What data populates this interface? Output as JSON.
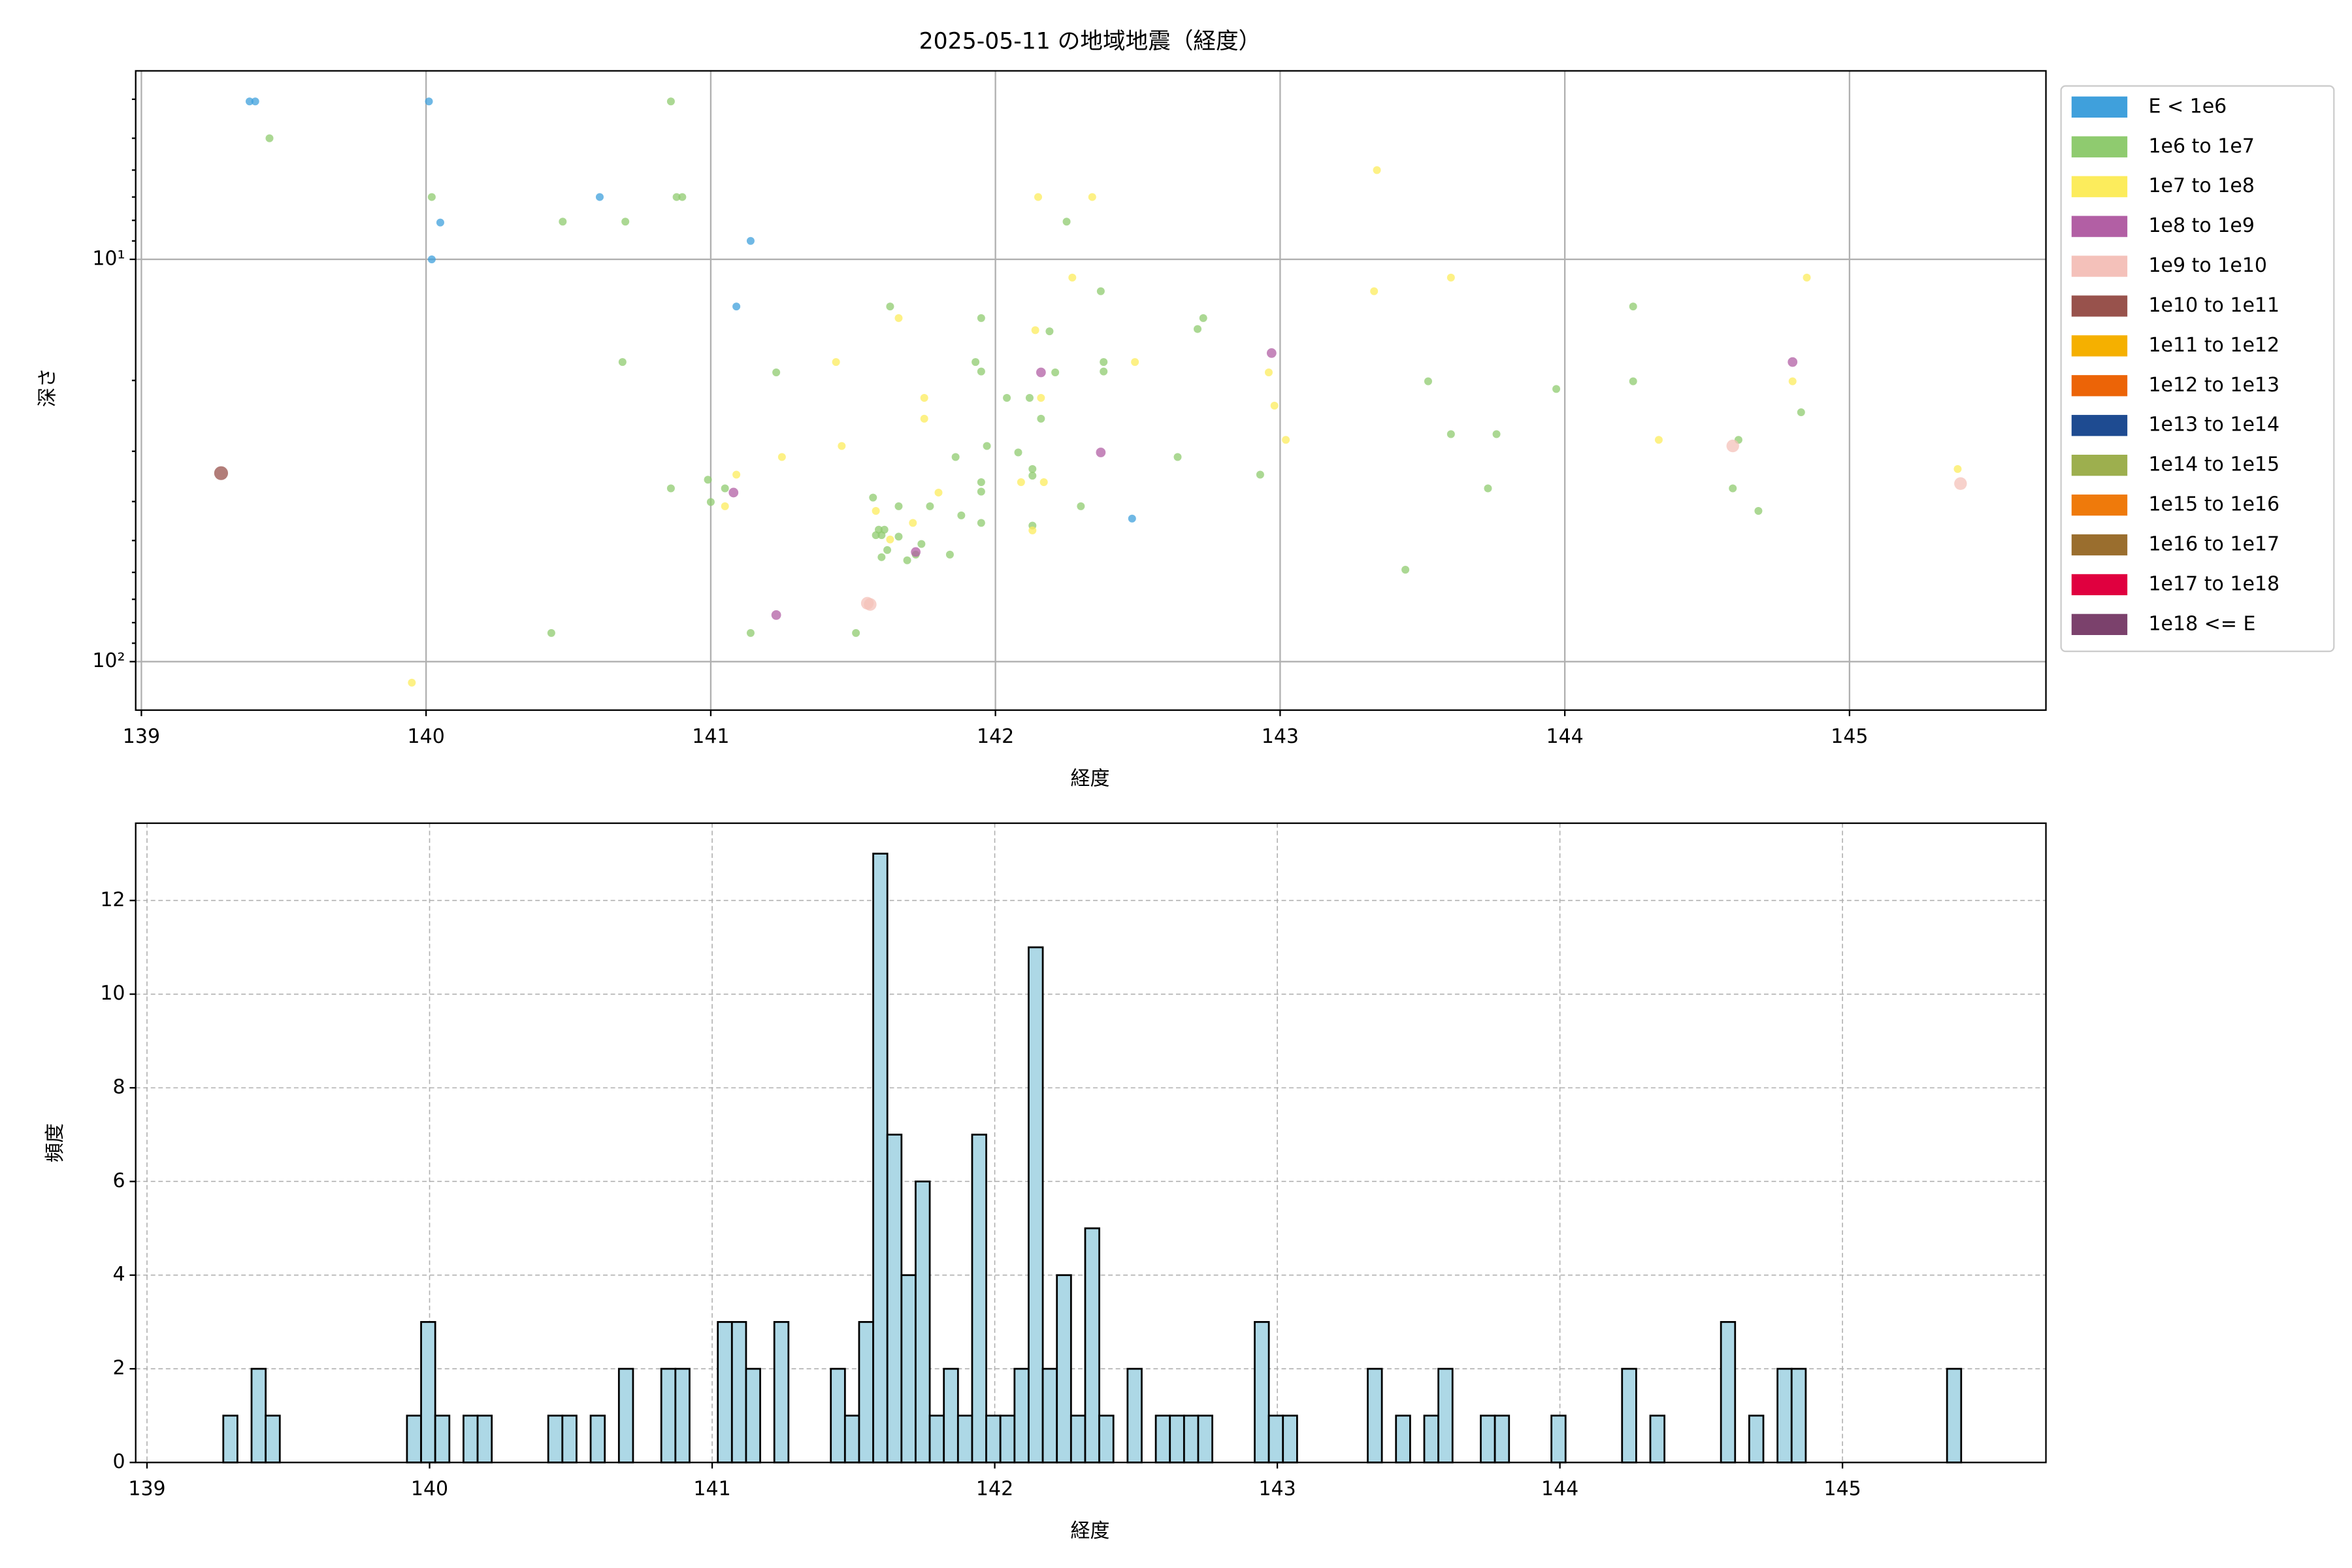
{
  "chart_data": [
    {
      "type": "scatter",
      "title": "2025-05-11 の地域地震（経度）",
      "xlabel": "経度",
      "ylabel": "深さ",
      "xlim": [
        138.98,
        145.69
      ],
      "xticks": [
        139,
        140,
        141,
        142,
        143,
        144,
        145
      ],
      "yscale": "log",
      "ylim": [
        132,
        3.4
      ],
      "yticks": [
        {
          "value": 10,
          "label": "10¹"
        },
        {
          "value": 100,
          "label": "10²"
        }
      ],
      "yminor_ticks": [
        4,
        5,
        6,
        7,
        8,
        9,
        20,
        30,
        40,
        50,
        60,
        70,
        80,
        90
      ],
      "grid": true,
      "legend": "outside upper right",
      "series": [
        {
          "name": "E < 1e6",
          "color": "#3fa0dc",
          "marker_size": 2.6,
          "x": [
            139.38,
            139.4,
            140.01,
            140.61,
            140.05,
            141.14,
            140.02,
            141.09,
            142.48
          ],
          "y": [
            4.05,
            4.05,
            4.05,
            7.0,
            8.1,
            9.0,
            10,
            13.1,
            44.1
          ]
        },
        {
          "name": "1e6 to 1e7",
          "color": "#8fcb6f",
          "marker_size": 2.6,
          "x": [
            139.45,
            140.86,
            140.02,
            140.48,
            140.7,
            140.88,
            140.9,
            142.25,
            142.37,
            141.63,
            142.73,
            141.95,
            142.19,
            142.71,
            140.69,
            141.23,
            141.93,
            141.95,
            142.04,
            142.21,
            142.38,
            142.38,
            142.12,
            142.16,
            143.52,
            143.97,
            144.24,
            144.24,
            144.83,
            144.61,
            143.6,
            143.76,
            142.64,
            141.97,
            141.86,
            142.08,
            142.13,
            142.13,
            140.99,
            140.86,
            141.0,
            141.05,
            141.95,
            141.95,
            141.57,
            141.66,
            141.77,
            141.88,
            142.3,
            141.95,
            142.13,
            142.93,
            143.73,
            144.59,
            144.68,
            141.59,
            141.6,
            141.61,
            141.58,
            141.62,
            141.6,
            141.66,
            141.69,
            141.72,
            141.74,
            141.84,
            143.44,
            140.44,
            141.14,
            141.51
          ],
          "y": [
            5.0,
            4.05,
            7.0,
            8.06,
            8.06,
            7.0,
            7.0,
            8.06,
            12.0,
            13.1,
            14.0,
            14.0,
            15.1,
            14.9,
            18.0,
            19.1,
            18.0,
            19.0,
            22.1,
            19.1,
            18.0,
            19.0,
            22.1,
            24.9,
            20.1,
            21.0,
            13.1,
            20.1,
            24.0,
            28.1,
            27.2,
            27.2,
            31.0,
            29.1,
            31.0,
            30.2,
            33.2,
            34.5,
            35.3,
            37.1,
            40.1,
            37.1,
            35.8,
            37.8,
            39.1,
            41.1,
            41.1,
            43.3,
            41.1,
            45.2,
            45.9,
            34.3,
            37.1,
            37.1,
            42.2,
            47.0,
            48.5,
            47.0,
            48.5,
            52.8,
            55.0,
            48.9,
            56.0,
            54.2,
            51.0,
            54.2,
            59.1,
            84.9,
            84.9,
            84.9
          ]
        },
        {
          "name": "1e7 to 1e8",
          "color": "#fcec5c",
          "marker_size": 2.6,
          "x": [
            143.34,
            142.15,
            142.34,
            142.27,
            143.6,
            144.85,
            143.33,
            141.66,
            142.14,
            141.44,
            142.49,
            142.96,
            144.8,
            141.75,
            141.75,
            142.98,
            142.16,
            141.46,
            143.02,
            144.33,
            141.25,
            141.09,
            145.38,
            142.17,
            142.09,
            141.8,
            141.58,
            141.05,
            141.71,
            141.63,
            142.13,
            139.95
          ],
          "y": [
            6.0,
            7.0,
            7.0,
            11.1,
            11.1,
            11.1,
            12.0,
            14.0,
            15.0,
            18.0,
            18.0,
            19.1,
            20.1,
            22.1,
            24.9,
            23.1,
            22.1,
            29.1,
            28.1,
            28.1,
            31.0,
            34.3,
            33.2,
            35.8,
            35.8,
            38.0,
            42.2,
            41.1,
            45.2,
            49.7,
            47.2,
            112.8
          ]
        },
        {
          "name": "1e8 to 1e9",
          "color": "#b25fa4",
          "marker_size": 3.2,
          "x": [
            142.97,
            142.16,
            144.8,
            142.37,
            141.08,
            141.72,
            141.23
          ],
          "y": [
            17.1,
            19.1,
            18.0,
            30.2,
            38.0,
            53.4,
            76.6
          ]
        },
        {
          "name": "1e9 to 1e10",
          "color": "#f4c1ba",
          "marker_size": 4.2,
          "x": [
            141.56,
            141.55,
            144.59,
            145.39
          ],
          "y": [
            72.1,
            71.6,
            29.1,
            36.1
          ]
        },
        {
          "name": "1e10 to 1e11",
          "color": "#98524c",
          "marker_size": 4.6,
          "x": [
            139.28
          ],
          "y": [
            34.0
          ]
        },
        {
          "name": "1e11 to 1e12",
          "color": "#f5b000",
          "marker_size": 2.6,
          "x": [],
          "y": []
        },
        {
          "name": "1e12 to 1e13",
          "color": "#ec6407",
          "marker_size": 2.6,
          "x": [],
          "y": []
        },
        {
          "name": "1e13 to 1e14",
          "color": "#1e4b91",
          "marker_size": 2.6,
          "x": [],
          "y": []
        },
        {
          "name": "1e14 to 1e15",
          "color": "#9daf4e",
          "marker_size": 2.6,
          "x": [],
          "y": []
        },
        {
          "name": "1e15 to 1e16",
          "color": "#ef7a0b",
          "marker_size": 2.6,
          "x": [],
          "y": []
        },
        {
          "name": "1e16 to 1e17",
          "color": "#9a6e2e",
          "marker_size": 2.6,
          "x": [],
          "y": []
        },
        {
          "name": "1e17 to 1e18",
          "color": "#e0003f",
          "marker_size": 2.6,
          "x": [],
          "y": []
        },
        {
          "name": "1e18 <= E",
          "color": "#7b416c",
          "marker_size": 2.6,
          "x": [],
          "y": []
        }
      ]
    },
    {
      "type": "histogram",
      "xlabel": "経度",
      "ylabel": "頻度",
      "color": "#add8e6",
      "edgecolor": "#000000",
      "xlim": [
        138.96,
        145.72
      ],
      "xticks": [
        139,
        140,
        141,
        142,
        143,
        144,
        145
      ],
      "ylim": [
        0,
        13.65
      ],
      "yticks": [
        0,
        2,
        4,
        6,
        8,
        10,
        12
      ],
      "grid": true,
      "grid_style": "dashed",
      "bins": [
        139.27,
        139.32,
        139.37,
        139.42,
        139.47,
        139.52,
        139.57,
        139.62,
        139.67,
        139.72,
        139.77,
        139.82,
        139.87,
        139.92,
        139.97,
        140.02,
        140.07,
        140.12,
        140.17,
        140.22,
        140.27,
        140.32,
        140.37,
        140.42,
        140.47,
        140.52,
        140.57,
        140.62,
        140.67,
        140.72,
        140.77,
        140.82,
        140.87,
        140.92,
        140.97,
        141.02,
        141.07,
        141.12,
        141.17,
        141.22,
        141.27,
        141.32,
        141.37,
        141.42,
        141.47,
        141.52,
        141.57,
        141.62,
        141.67,
        141.72,
        141.77,
        141.82,
        141.87,
        141.92,
        141.97,
        142.02,
        142.07,
        142.12,
        142.17,
        142.22,
        142.27,
        142.32,
        142.37,
        142.42,
        142.47,
        142.52,
        142.57,
        142.62,
        142.67,
        142.72,
        142.77,
        142.82,
        142.87,
        142.92,
        142.97,
        143.02,
        143.07,
        143.12,
        143.17,
        143.22,
        143.27,
        143.32,
        143.37,
        143.42,
        143.47,
        143.52,
        143.57,
        143.62,
        143.67,
        143.72,
        143.77,
        143.82,
        143.87,
        143.92,
        143.97,
        144.02,
        144.07,
        144.12,
        144.17,
        144.22,
        144.27,
        144.32,
        144.37,
        144.42,
        144.47,
        144.52,
        144.57,
        144.62,
        144.67,
        144.72,
        144.77,
        144.82,
        144.87,
        144.92,
        144.97,
        145.02,
        145.07,
        145.12,
        145.17,
        145.22,
        145.27,
        145.32,
        145.37,
        145.42
      ],
      "values": [
        1,
        0,
        2,
        1,
        0,
        0,
        0,
        0,
        0,
        0,
        0,
        0,
        0,
        1,
        3,
        1,
        0,
        1,
        1,
        0,
        0,
        0,
        0,
        1,
        1,
        0,
        1,
        0,
        2,
        0,
        0,
        2,
        2,
        0,
        0,
        3,
        3,
        2,
        0,
        3,
        0,
        0,
        0,
        2,
        1,
        3,
        13,
        7,
        4,
        6,
        1,
        2,
        1,
        7,
        1,
        1,
        2,
        11,
        2,
        4,
        1,
        5,
        1,
        0,
        2,
        0,
        1,
        1,
        1,
        1,
        0,
        0,
        0,
        3,
        1,
        1,
        0,
        0,
        0,
        0,
        0,
        2,
        0,
        1,
        0,
        1,
        2,
        0,
        0,
        1,
        1,
        0,
        0,
        0,
        1,
        0,
        0,
        0,
        0,
        2,
        0,
        1,
        0,
        0,
        0,
        0,
        3,
        0,
        1,
        0,
        2,
        2,
        0,
        0,
        0,
        0,
        0,
        0,
        0,
        0,
        0,
        0,
        2
      ]
    }
  ]
}
